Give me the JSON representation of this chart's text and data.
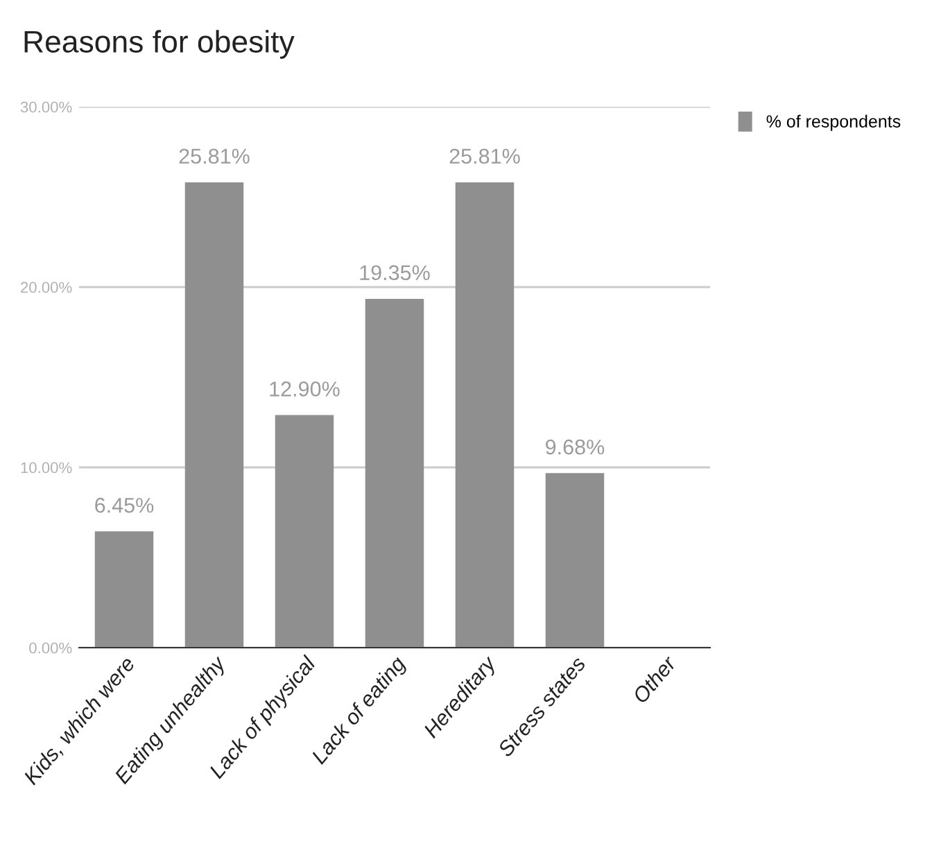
{
  "chart_data": {
    "type": "bar",
    "title": "Reasons for obesity",
    "categories": [
      "Kids, which were",
      "Eating unhealthy",
      "Lack of physical",
      "Lack of eating",
      "Hereditary",
      "Stress states",
      "Other"
    ],
    "series": [
      {
        "name": "% of respondents",
        "color": "#8f8f8f",
        "values": [
          6.45,
          25.81,
          12.9,
          19.35,
          25.81,
          9.68,
          0
        ],
        "value_labels": [
          "6.45%",
          "25.81%",
          "12.90%",
          "19.35%",
          "25.81%",
          "9.68%",
          null
        ]
      }
    ],
    "ylim": [
      0,
      30
    ],
    "yticks": [
      {
        "value": 0,
        "label": "0.00%"
      },
      {
        "value": 10,
        "label": "10.00%"
      },
      {
        "value": 20,
        "label": "20.00%"
      },
      {
        "value": 30,
        "label": "30.00%"
      }
    ],
    "grid": "y",
    "legend": "top right"
  }
}
